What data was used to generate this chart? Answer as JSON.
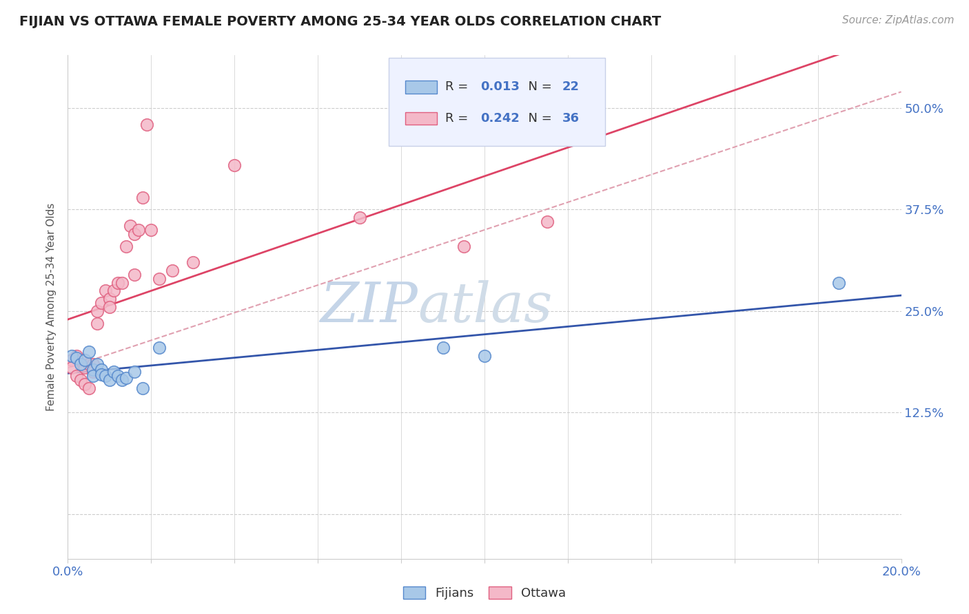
{
  "title": "FIJIAN VS OTTAWA FEMALE POVERTY AMONG 25-34 YEAR OLDS CORRELATION CHART",
  "source": "Source: ZipAtlas.com",
  "ylabel": "Female Poverty Among 25-34 Year Olds",
  "xlim": [
    0.0,
    0.2
  ],
  "ylim": [
    -0.055,
    0.565
  ],
  "yticks": [
    0.0,
    0.125,
    0.25,
    0.375,
    0.5
  ],
  "fijians_R": 0.013,
  "fijians_N": 22,
  "ottawa_R": 0.242,
  "ottawa_N": 36,
  "fijians_color": "#A8C8E8",
  "ottawa_color": "#F4B8C8",
  "fijians_edge_color": "#5588CC",
  "ottawa_edge_color": "#E06080",
  "fijians_line_color": "#3355AA",
  "ottawa_line_color": "#DD4466",
  "dash_line_color": "#E0A0B0",
  "label_color": "#4472C4",
  "background_color": "#FFFFFF",
  "watermark_color": "#D8E4F0",
  "legend_facecolor": "#EEF2FF",
  "legend_edgecolor": "#C8D0E8",
  "fijians_x": [
    0.001,
    0.002,
    0.003,
    0.004,
    0.005,
    0.006,
    0.006,
    0.007,
    0.008,
    0.008,
    0.009,
    0.01,
    0.011,
    0.012,
    0.013,
    0.014,
    0.016,
    0.018,
    0.022,
    0.09,
    0.1,
    0.185
  ],
  "fijians_y": [
    0.195,
    0.192,
    0.185,
    0.19,
    0.2,
    0.178,
    0.17,
    0.185,
    0.178,
    0.172,
    0.17,
    0.165,
    0.175,
    0.17,
    0.165,
    0.168,
    0.175,
    0.155,
    0.205,
    0.205,
    0.195,
    0.285
  ],
  "ottawa_x": [
    0.001,
    0.001,
    0.002,
    0.002,
    0.003,
    0.003,
    0.004,
    0.004,
    0.005,
    0.005,
    0.006,
    0.006,
    0.007,
    0.007,
    0.008,
    0.009,
    0.01,
    0.01,
    0.011,
    0.012,
    0.013,
    0.014,
    0.015,
    0.016,
    0.016,
    0.017,
    0.018,
    0.019,
    0.02,
    0.022,
    0.025,
    0.03,
    0.04,
    0.07,
    0.095,
    0.115
  ],
  "ottawa_y": [
    0.19,
    0.18,
    0.195,
    0.17,
    0.19,
    0.165,
    0.18,
    0.16,
    0.185,
    0.155,
    0.185,
    0.175,
    0.25,
    0.235,
    0.26,
    0.275,
    0.265,
    0.255,
    0.275,
    0.285,
    0.285,
    0.33,
    0.355,
    0.345,
    0.295,
    0.35,
    0.39,
    0.48,
    0.35,
    0.29,
    0.3,
    0.31,
    0.43,
    0.365,
    0.33,
    0.36
  ]
}
